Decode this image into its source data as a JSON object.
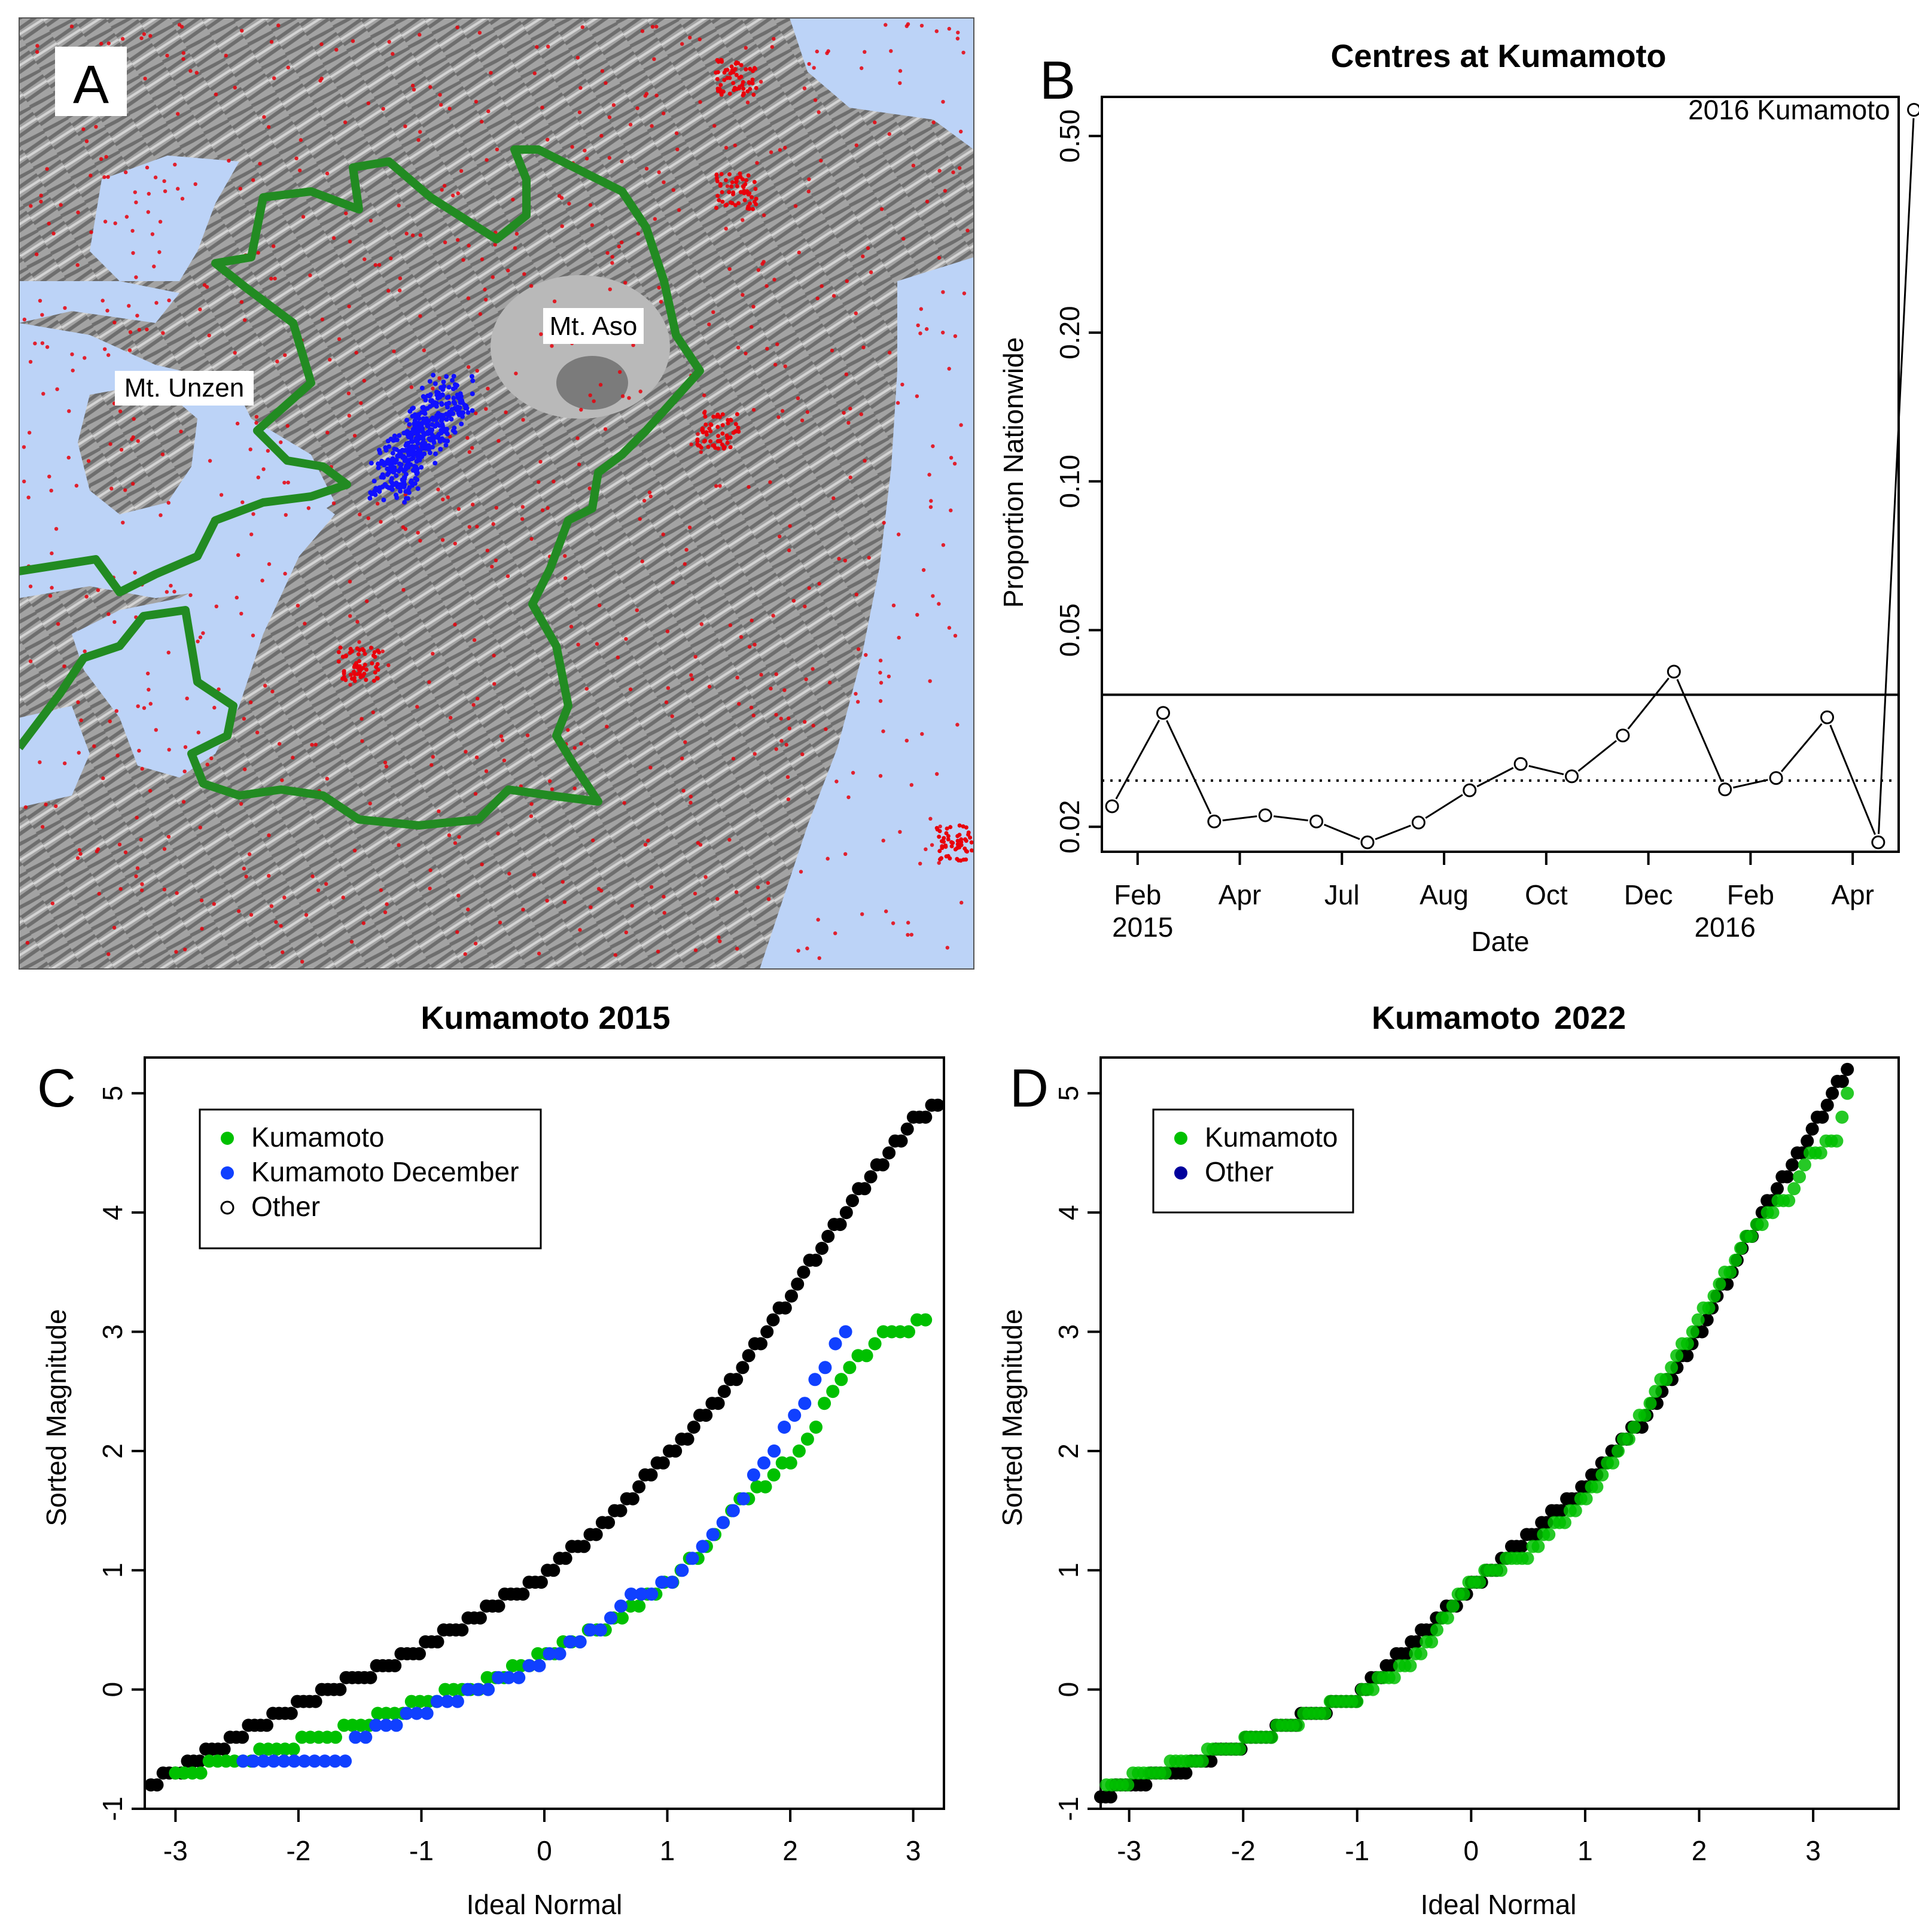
{
  "colors": {
    "sea": "#bcd3f7",
    "land": "#9a9a9a",
    "outline": "#228b22",
    "red": "#e8000b",
    "blue": "#1010ff",
    "green": "#00c000",
    "kd_blue": "#1040ff",
    "other_black": "#000000",
    "dark_blue": "#00009c"
  },
  "panelA": {
    "letter": "A",
    "labels": {
      "aso": "Mt. Aso",
      "unzen": "Mt. Unzen"
    }
  },
  "chart_data": [
    {
      "panel": "B",
      "type": "line",
      "title": "Centres at Kumamoto",
      "xlabel": "Date",
      "ylabel": "Proportion Nationwide",
      "y_scale": "log",
      "ylim": [
        0.0178,
        0.6
      ],
      "xlim": [
        0.3,
        15.9
      ],
      "x_ticks": [
        {
          "x": 1.0,
          "label": "Feb"
        },
        {
          "x": 3.0,
          "label": "Apr"
        },
        {
          "x": 5.0,
          "label": "Jul"
        },
        {
          "x": 7.0,
          "label": "Aug"
        },
        {
          "x": 9.0,
          "label": "Oct"
        },
        {
          "x": 11.0,
          "label": "Dec"
        },
        {
          "x": 13.0,
          "label": "Feb"
        },
        {
          "x": 15.0,
          "label": "Apr"
        }
      ],
      "year_labels": [
        {
          "x": 0.5,
          "label": "2015"
        },
        {
          "x": 11.9,
          "label": "2016"
        }
      ],
      "y_ticks": [
        0.02,
        0.05,
        0.1,
        0.2,
        0.5
      ],
      "y_tick_labels": [
        "0.02",
        "0.05",
        "0.10",
        "0.20",
        "0.50"
      ],
      "series": [
        {
          "name": "proportion",
          "x": [
            0.5,
            1.5,
            2.5,
            3.5,
            4.5,
            5.5,
            6.5,
            7.5,
            8.5,
            9.5,
            10.5,
            11.5,
            12.5,
            13.5,
            14.5,
            15.5,
            16.2
          ],
          "values": [
            0.022,
            0.034,
            0.0205,
            0.0211,
            0.0205,
            0.0186,
            0.0204,
            0.0237,
            0.0268,
            0.0253,
            0.0306,
            0.0412,
            0.0238,
            0.0251,
            0.0333,
            0.0186,
            0.565
          ]
        }
      ],
      "reference_lines": {
        "solid": 0.037,
        "dotted": 0.0248
      },
      "annotation": "2016 Kumamoto"
    },
    {
      "panel": "C",
      "type": "scatter",
      "title": "Kumamoto 2015",
      "xlabel": "Ideal Normal",
      "ylabel": "Sorted Magnitude",
      "xlim": [
        -3.25,
        3.25
      ],
      "ylim": [
        -1.0,
        5.3
      ],
      "x_ticks": [
        -3,
        -2,
        -1,
        0,
        1,
        2,
        3
      ],
      "x_tick_labels": [
        "-3",
        "-2",
        "-1",
        "0",
        "1",
        "2",
        "3"
      ],
      "y_ticks": [
        -1,
        0,
        1,
        2,
        3,
        4,
        5
      ],
      "y_tick_labels": [
        "-1",
        "0",
        "1",
        "2",
        "3",
        "4",
        "5"
      ],
      "legend": [
        {
          "label": "Kumamoto",
          "marker": "filled",
          "color": "#00c000"
        },
        {
          "label": "Kumamoto December",
          "marker": "filled",
          "color": "#1040ff"
        },
        {
          "label": "Other",
          "marker": "open",
          "color": "#000000"
        }
      ],
      "series": [
        {
          "name": "Other",
          "x": [
            -3.2,
            -2.6,
            -2.0,
            -1.5,
            -1.0,
            -0.5,
            0.0,
            0.5,
            1.0,
            1.5,
            2.0,
            2.5,
            3.0,
            3.2
          ],
          "values": [
            -0.8,
            -0.45,
            -0.12,
            0.1,
            0.35,
            0.65,
            0.95,
            1.4,
            1.95,
            2.55,
            3.3,
            4.1,
            4.75,
            4.9
          ]
        },
        {
          "name": "Kumamoto",
          "x": [
            -3.0,
            -2.5,
            -2.0,
            -1.5,
            -1.0,
            -0.5,
            0.0,
            0.5,
            1.0,
            1.3,
            1.6,
            2.0,
            2.1,
            2.25,
            2.4,
            2.6,
            2.8,
            2.95,
            3.1
          ],
          "values": [
            -0.7,
            -0.6,
            -0.45,
            -0.3,
            -0.1,
            0.05,
            0.3,
            0.55,
            0.9,
            1.15,
            1.6,
            1.9,
            2.05,
            2.3,
            2.6,
            2.8,
            3.0,
            3.0,
            3.1
          ]
        },
        {
          "name": "Kumamoto December",
          "x": [
            -2.45,
            -2.0,
            -1.8,
            -1.65,
            -1.5,
            -1.3,
            -1.0,
            -0.5,
            0.0,
            0.4,
            0.7,
            1.0,
            1.3,
            1.6,
            1.8,
            2.45
          ],
          "values": [
            -0.6,
            -0.6,
            -0.6,
            -0.6,
            -0.4,
            -0.3,
            -0.2,
            0.0,
            0.25,
            0.5,
            0.75,
            0.9,
            1.2,
            1.6,
            1.9,
            3.0
          ]
        }
      ]
    },
    {
      "panel": "D",
      "type": "scatter",
      "title": "Kumamoto 2022",
      "title_parts": [
        "Kumamoto",
        "2022"
      ],
      "xlabel": "Ideal Normal",
      "ylabel": "Sorted Magnitude",
      "xlim": [
        -3.25,
        3.75
      ],
      "ylim": [
        -1.0,
        5.3
      ],
      "x_ticks": [
        -3,
        -2,
        -1,
        0,
        1,
        2,
        3
      ],
      "x_tick_labels": [
        "-3",
        "-2",
        "-1",
        "0",
        "1",
        "2",
        "3"
      ],
      "y_ticks": [
        -1,
        0,
        1,
        2,
        3,
        4,
        5
      ],
      "y_tick_labels": [
        "-1",
        "0",
        "1",
        "2",
        "3",
        "4",
        "5"
      ],
      "legend": [
        {
          "label": "Kumamoto",
          "marker": "filled",
          "color": "#00c000"
        },
        {
          "label": "Other",
          "marker": "filled",
          "color": "#00009c"
        }
      ],
      "series": [
        {
          "name": "Other",
          "x": [
            -3.25,
            -3.0,
            -2.5,
            -2.0,
            -1.5,
            -1.0,
            0.0,
            1.0,
            1.5,
            2.0,
            2.5,
            3.0,
            3.3
          ],
          "values": [
            -0.9,
            -0.8,
            -0.65,
            -0.45,
            -0.25,
            -0.05,
            0.85,
            1.7,
            2.25,
            3.0,
            3.9,
            4.7,
            5.2
          ]
        },
        {
          "name": "Kumamoto",
          "x": [
            -3.2,
            -3.0,
            -2.5,
            -2.0,
            -1.5,
            -1.0,
            -0.5,
            0.0,
            0.5,
            1.0,
            1.5,
            2.0,
            2.5,
            2.8,
            3.0,
            3.2,
            3.3
          ],
          "values": [
            -0.8,
            -0.75,
            -0.6,
            -0.45,
            -0.25,
            -0.05,
            0.25,
            0.9,
            1.15,
            1.6,
            2.3,
            3.1,
            3.9,
            4.15,
            4.5,
            4.6,
            5.0
          ]
        }
      ]
    }
  ]
}
